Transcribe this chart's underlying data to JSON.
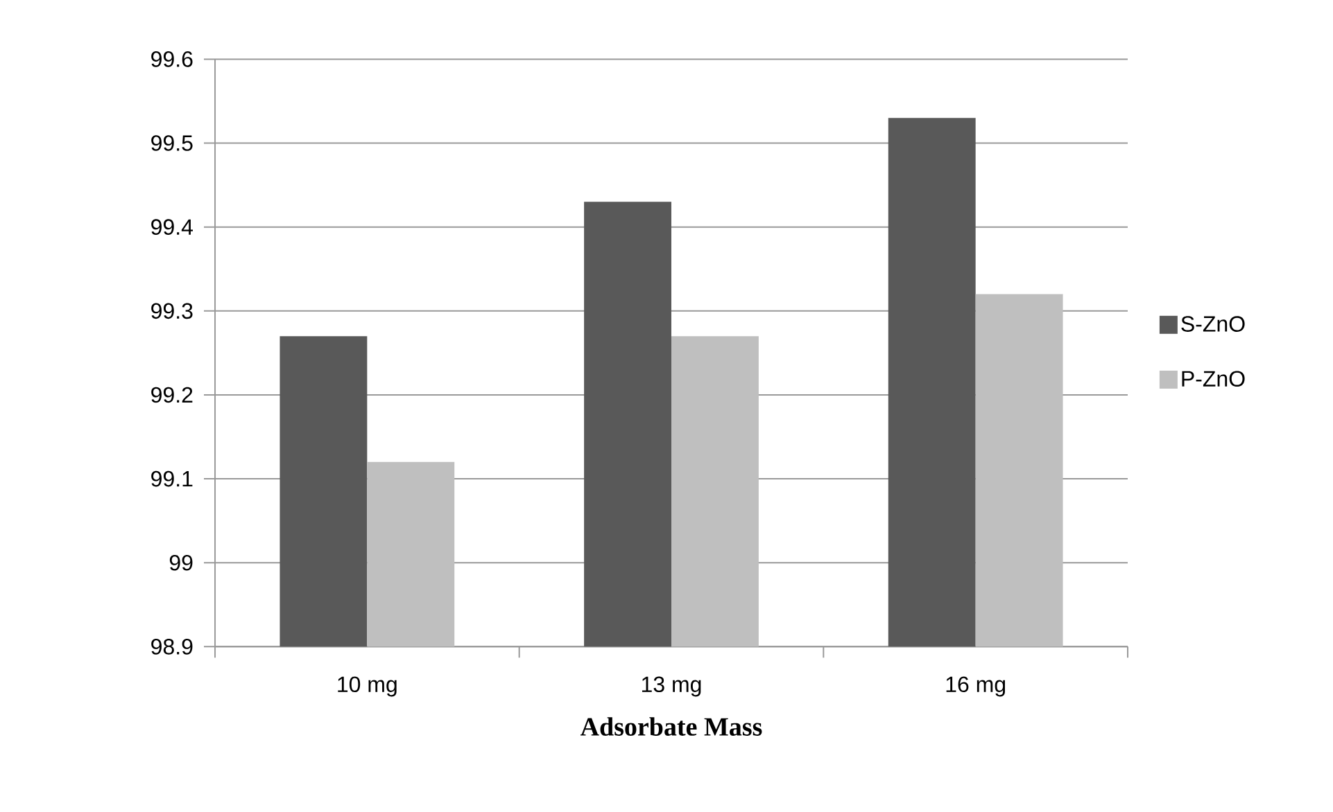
{
  "chart_data": {
    "type": "bar",
    "xlabel": "Adsorbate Mass",
    "categories": [
      "10 mg",
      "13 mg",
      "16 mg"
    ],
    "series": [
      {
        "name": "S-ZnO",
        "color": "#595959",
        "values": [
          99.27,
          99.43,
          99.53
        ]
      },
      {
        "name": "P-ZnO",
        "color": "#bfbfbf",
        "values": [
          99.12,
          99.27,
          99.32
        ]
      }
    ],
    "ylim": [
      98.9,
      99.6
    ],
    "yticks": [
      {
        "value": 98.9,
        "label": "98.9"
      },
      {
        "value": 99.0,
        "label": "99"
      },
      {
        "value": 99.1,
        "label": "99.1"
      },
      {
        "value": 99.2,
        "label": "99.2"
      },
      {
        "value": 99.3,
        "label": "99.3"
      },
      {
        "value": 99.4,
        "label": "99.4"
      },
      {
        "value": 99.5,
        "label": "99.5"
      },
      {
        "value": 99.6,
        "label": "99.6"
      }
    ],
    "grid": "y",
    "legend": "right"
  }
}
